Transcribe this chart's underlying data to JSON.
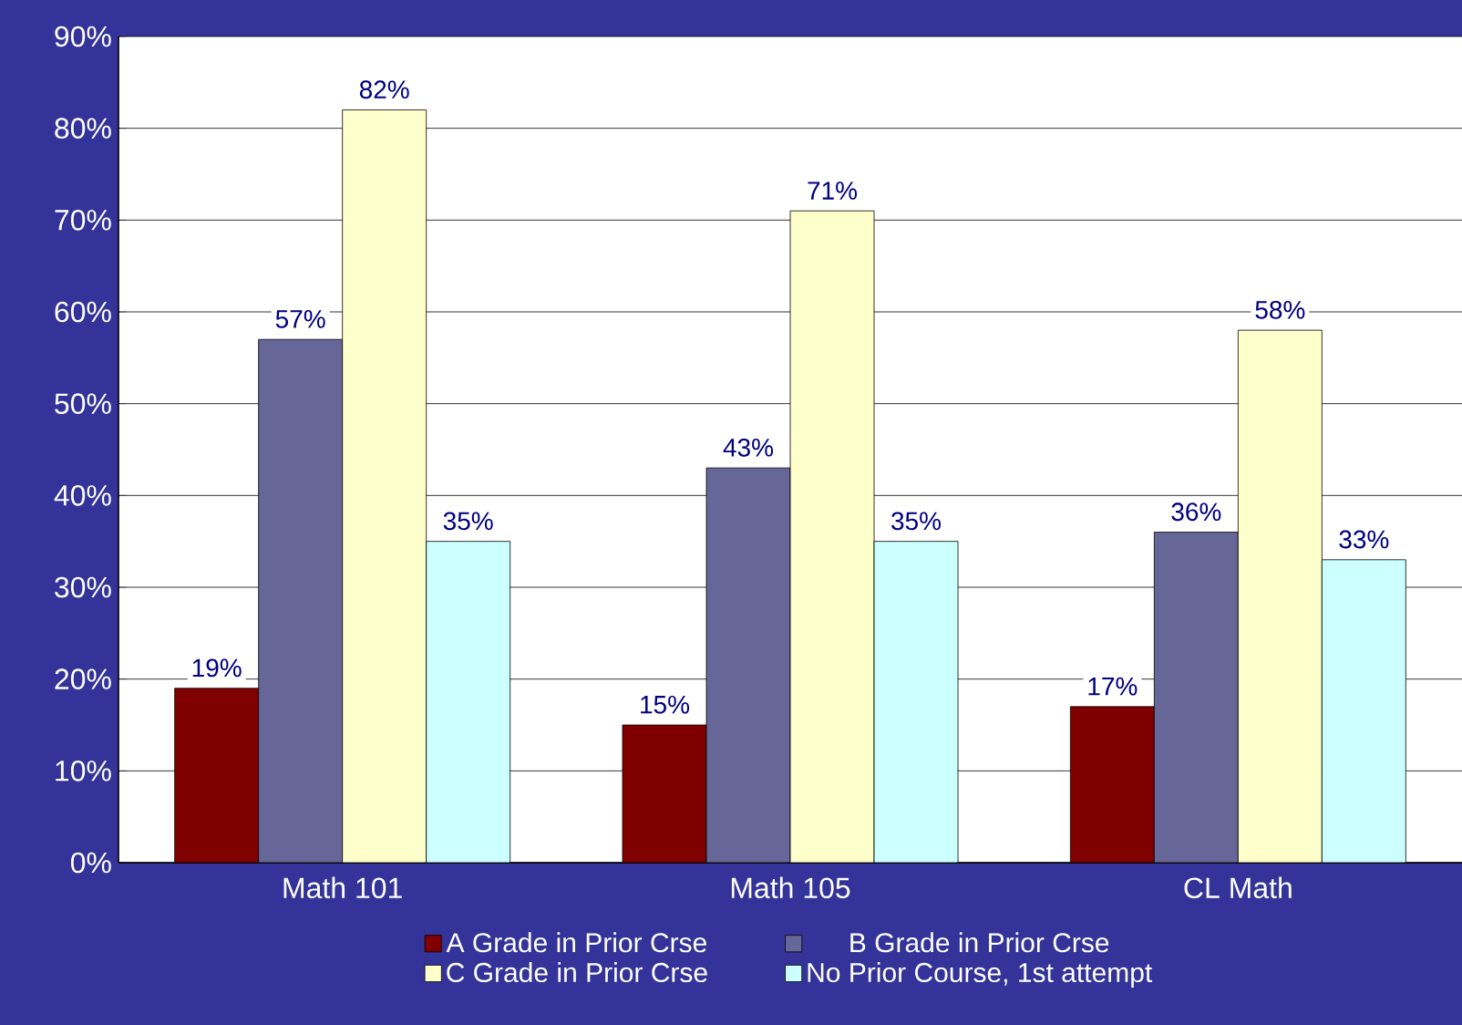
{
  "chart_data": {
    "type": "bar",
    "categories": [
      "Math 101",
      "Math 105",
      "CL Math"
    ],
    "series": [
      {
        "name": "A Grade in Prior Crse",
        "color": "#800000",
        "values": [
          19,
          15,
          17
        ],
        "value_labels": [
          "19%",
          "15%",
          "17%"
        ]
      },
      {
        "name": "B Grade in Prior Crse",
        "color": "#666699",
        "values": [
          57,
          43,
          36
        ],
        "value_labels": [
          "57%",
          "43%",
          "36%"
        ]
      },
      {
        "name": "C Grade in Prior Crse",
        "color": "#ffffcc",
        "values": [
          82,
          71,
          58
        ],
        "value_labels": [
          "82%",
          "71%",
          "58%"
        ]
      },
      {
        "name": "No Prior Course, 1st attempt",
        "color": "#ccffff",
        "values": [
          35,
          35,
          33
        ],
        "value_labels": [
          "35%",
          "35%",
          "33%"
        ]
      }
    ],
    "ylim": [
      0,
      90
    ],
    "yticks": [
      {
        "value": 0,
        "label": "0%"
      },
      {
        "value": 10,
        "label": "10%"
      },
      {
        "value": 20,
        "label": "20%"
      },
      {
        "value": 30,
        "label": "30%"
      },
      {
        "value": 40,
        "label": "40%"
      },
      {
        "value": 50,
        "label": "50%"
      },
      {
        "value": 60,
        "label": "60%"
      },
      {
        "value": 70,
        "label": "70%"
      },
      {
        "value": 80,
        "label": "80%"
      },
      {
        "value": 90,
        "label": "90%"
      }
    ],
    "grid": "y",
    "legend": "bottom"
  }
}
